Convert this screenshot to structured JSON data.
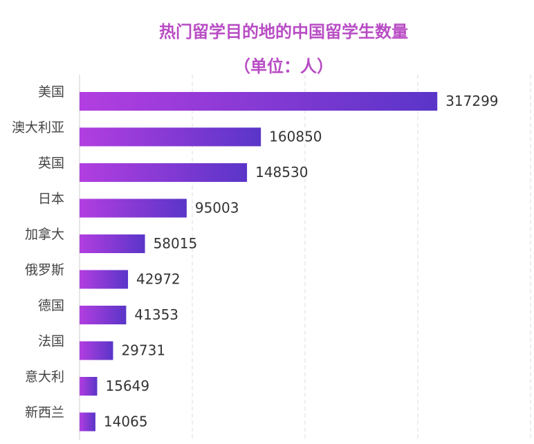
{
  "chart_data": {
    "type": "hbar",
    "title": "热门留学目的地的中国留学生数量",
    "subtitle": "（单位：人）",
    "categories": [
      "美国",
      "澳大利亚",
      "英国",
      "日本",
      "加拿大",
      "俄罗斯",
      "德国",
      "法国",
      "意大利",
      "新西兰"
    ],
    "values": [
      317299,
      160850,
      148530,
      95003,
      58015,
      42972,
      41353,
      29731,
      15649,
      14065
    ],
    "color": [
      "#b23ee0",
      "#5a35c8"
    ],
    "xlim": [
      0,
      400000
    ],
    "xticks": [
      0,
      100000,
      200000,
      300000,
      400000
    ],
    "grid": true
  }
}
